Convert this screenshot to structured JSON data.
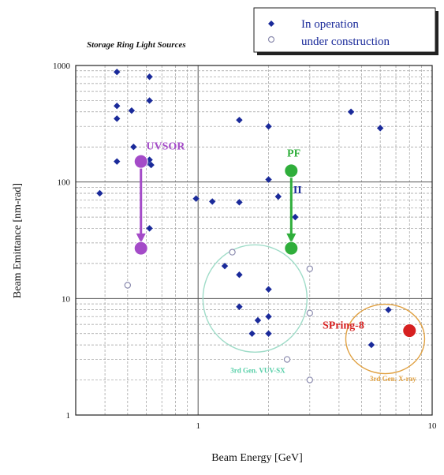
{
  "chart_data": {
    "type": "scatter",
    "title": "Storage Ring Light Sources",
    "xlabel": "Beam Energy [GeV]",
    "ylabel": "Beam Emittance [nm-rad]",
    "x_scale": "log",
    "y_scale": "log",
    "xlim": [
      0.3,
      10
    ],
    "ylim": [
      1,
      1000
    ],
    "grid": true,
    "legend_position": "top-right",
    "x_ticks": [
      {
        "value": 1,
        "label": "1"
      },
      {
        "value": 10,
        "label": "10"
      }
    ],
    "y_ticks": [
      {
        "value": 1,
        "label": "1"
      },
      {
        "value": 10,
        "label": "10"
      },
      {
        "value": 100,
        "label": "100"
      },
      {
        "value": 1000,
        "label": "1000"
      }
    ],
    "series": [
      {
        "name": "In operation",
        "marker": "diamond",
        "color": "#1a2a9a",
        "points": [
          {
            "x": 0.38,
            "y": 80
          },
          {
            "x": 0.45,
            "y": 880
          },
          {
            "x": 0.45,
            "y": 450
          },
          {
            "x": 0.45,
            "y": 350
          },
          {
            "x": 0.45,
            "y": 150
          },
          {
            "x": 0.52,
            "y": 410
          },
          {
            "x": 0.53,
            "y": 200
          },
          {
            "x": 0.6,
            "y": 145
          },
          {
            "x": 0.62,
            "y": 800
          },
          {
            "x": 0.62,
            "y": 500
          },
          {
            "x": 0.62,
            "y": 155
          },
          {
            "x": 0.63,
            "y": 140
          },
          {
            "x": 0.62,
            "y": 40
          },
          {
            "x": 0.98,
            "y": 72
          },
          {
            "x": 1.15,
            "y": 68
          },
          {
            "x": 1.3,
            "y": 19
          },
          {
            "x": 1.5,
            "y": 340
          },
          {
            "x": 1.5,
            "y": 67
          },
          {
            "x": 1.5,
            "y": 16
          },
          {
            "x": 1.5,
            "y": 8.5
          },
          {
            "x": 1.7,
            "y": 5
          },
          {
            "x": 1.8,
            "y": 6.5
          },
          {
            "x": 2.0,
            "y": 300
          },
          {
            "x": 2.0,
            "y": 105
          },
          {
            "x": 2.0,
            "y": 12
          },
          {
            "x": 2.0,
            "y": 7
          },
          {
            "x": 2.0,
            "y": 5
          },
          {
            "x": 2.2,
            "y": 75
          },
          {
            "x": 2.6,
            "y": 50
          },
          {
            "x": 4.5,
            "y": 400
          },
          {
            "x": 5.5,
            "y": 4
          },
          {
            "x": 6.0,
            "y": 290
          },
          {
            "x": 6.5,
            "y": 8
          }
        ]
      },
      {
        "name": "under construction",
        "marker": "open-circle",
        "color": "#8c8caf",
        "points": [
          {
            "x": 0.5,
            "y": 13
          },
          {
            "x": 1.4,
            "y": 25
          },
          {
            "x": 2.4,
            "y": 3
          },
          {
            "x": 3.0,
            "y": 18
          },
          {
            "x": 3.0,
            "y": 7.5
          },
          {
            "x": 3.0,
            "y": 2
          }
        ]
      }
    ],
    "highlighted_points": [
      {
        "x": 0.57,
        "y": 150,
        "color": "#a44bc8"
      },
      {
        "x": 0.57,
        "y": 27,
        "color": "#a44bc8"
      },
      {
        "x": 2.5,
        "y": 125,
        "color": "#2fae3b"
      },
      {
        "x": 2.5,
        "y": 27,
        "color": "#2fae3b"
      },
      {
        "x": 8.0,
        "y": 5.3,
        "color": "#d62020"
      }
    ],
    "arrows": [
      {
        "from": [
          0.57,
          140
        ],
        "to": [
          0.57,
          30
        ],
        "color": "#a44bc8"
      },
      {
        "from": [
          2.5,
          110
        ],
        "to": [
          2.5,
          30
        ],
        "color": "#2fae3b"
      }
    ],
    "annotations": [
      {
        "text": "UVSOR",
        "x": 0.6,
        "y": 190,
        "color": "#a44bc8"
      },
      {
        "text": "PF",
        "x": 2.4,
        "y": 165,
        "color": "#2fae3b"
      },
      {
        "text": "II",
        "x": 2.55,
        "y": 80,
        "color": "#1a2a9a"
      },
      {
        "text": "SPring-8",
        "x": 3.4,
        "y": 5.5,
        "color": "#d62020"
      },
      {
        "text": "3rd Gen. VUV-SX",
        "x": 1.8,
        "y": 2.3,
        "color": "#57cfa8"
      },
      {
        "text": "3rd Gen. X-ray",
        "x": 6.8,
        "y": 1.95,
        "color": "#e0a040"
      }
    ],
    "regions": [
      {
        "cx": 1.75,
        "cy": 10,
        "rx_px": 66,
        "ry_px": 68,
        "color": "#9fdcc8"
      },
      {
        "cx": 6.3,
        "cy": 4.5,
        "rx_px": 50,
        "ry_px": 44,
        "color": "#e0a040"
      }
    ]
  }
}
